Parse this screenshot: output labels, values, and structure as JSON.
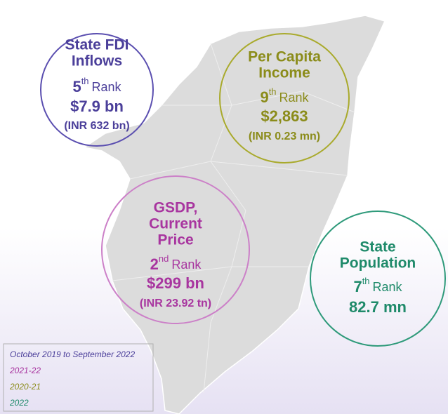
{
  "cards": [
    {
      "title": [
        "State FDI",
        "Inflows"
      ],
      "rank": "5",
      "suffix": "th",
      "rank_word": "Rank",
      "value": "$7.9 bn",
      "note": "(INR 632 bn)"
    },
    {
      "title": [
        "Per Capita",
        "Income"
      ],
      "rank": "9",
      "suffix": "th",
      "rank_word": "Rank",
      "value": "$2,863",
      "note": "(INR 0.23 mn)"
    },
    {
      "title": [
        "GSDP,",
        "Current",
        "Price"
      ],
      "rank": "2",
      "suffix": "nd",
      "rank_word": "Rank",
      "value": "$299 bn",
      "note": "(INR 23.92 tn)"
    },
    {
      "title": [
        "State",
        "Population"
      ],
      "rank": "7",
      "suffix": "th",
      "rank_word": "Rank",
      "value": "82.7 mn"
    }
  ],
  "legend": [
    "October 2019 to September 2022",
    "2021-22",
    "2020-21",
    "2022"
  ]
}
